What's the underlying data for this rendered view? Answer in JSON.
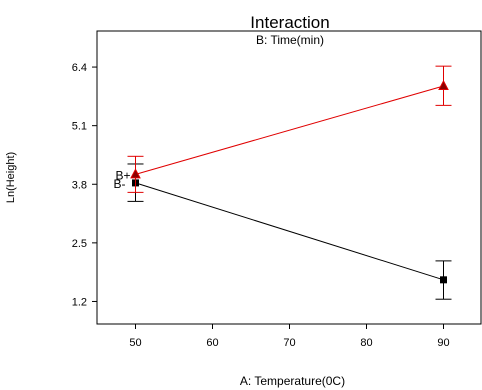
{
  "chart_data": {
    "type": "line",
    "title": "Interaction",
    "subtitle": "B: Time(min)",
    "xlabel": "A: Temperature(0C)",
    "ylabel": "Ln(Height)",
    "xlim": [
      45,
      95
    ],
    "ylim": [
      0.7,
      7.2
    ],
    "xticks": [
      50,
      60,
      70,
      80,
      90
    ],
    "yticks": [
      1.2,
      2.5,
      3.8,
      5.1,
      6.4
    ],
    "ytick_labels": [
      "1.2",
      "2.5",
      "3.8",
      "5.1",
      "6.4"
    ],
    "grid": false,
    "series": [
      {
        "name": "B+",
        "color": "#e00000",
        "marker": "triangle",
        "x": [
          50,
          90
        ],
        "y": [
          4.02,
          5.98
        ],
        "err_low": [
          3.62,
          5.55
        ],
        "err_high": [
          4.42,
          6.42
        ]
      },
      {
        "name": "B-",
        "color": "#000000",
        "marker": "square",
        "x": [
          50,
          90
        ],
        "y": [
          3.83,
          1.68
        ],
        "err_low": [
          3.42,
          1.25
        ],
        "err_high": [
          4.25,
          2.1
        ]
      }
    ]
  }
}
